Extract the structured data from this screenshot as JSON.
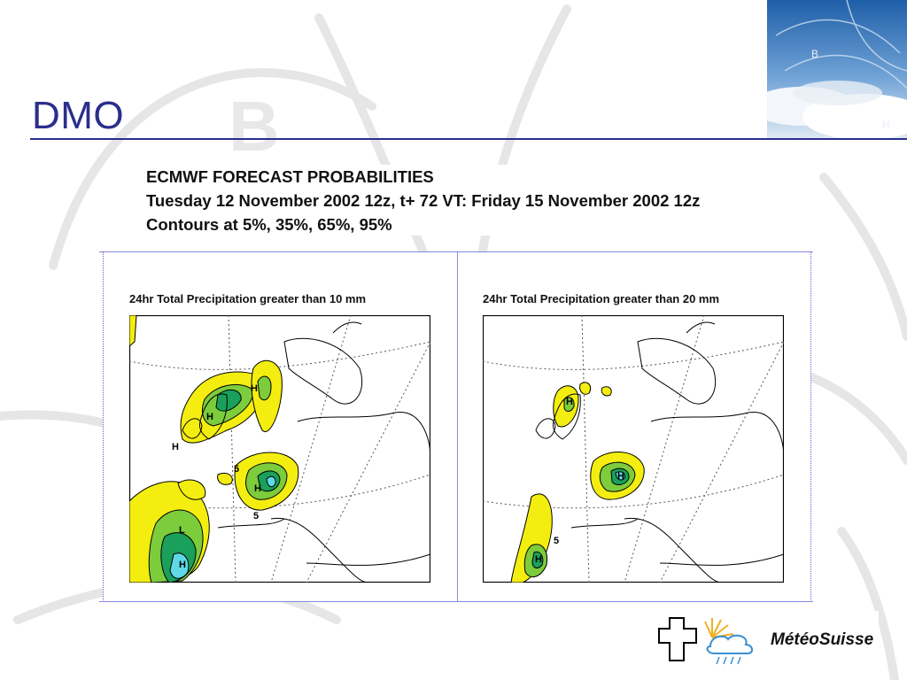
{
  "slide": {
    "title": "DMO"
  },
  "forecast": {
    "line1": "ECMWF FORECAST PROBABILITIES",
    "line2": "Tuesday 12 November 2002 12z, t+ 72 VT: Friday 15 November 2002 12z",
    "line3": "Contours at 5%, 35%, 65%, 95%"
  },
  "panels": {
    "left": {
      "title": "24hr Total Precipitation  greater than 10  mm",
      "labels": [
        "H",
        "H",
        "H",
        "H",
        "L",
        "H",
        "5",
        "5"
      ]
    },
    "right": {
      "title": "24hr Total Precipitation  greater than 20  mm",
      "labels": [
        "H",
        "H",
        "H",
        "5"
      ]
    }
  },
  "logo": {
    "name": "MétéoSuisse"
  },
  "colors": {
    "title_blue": "#2a2f8c",
    "prob_5": "#f4ee10",
    "prob_35": "#7ccc3c",
    "prob_65": "#1aa05a",
    "prob_95": "#5fd8e8"
  }
}
